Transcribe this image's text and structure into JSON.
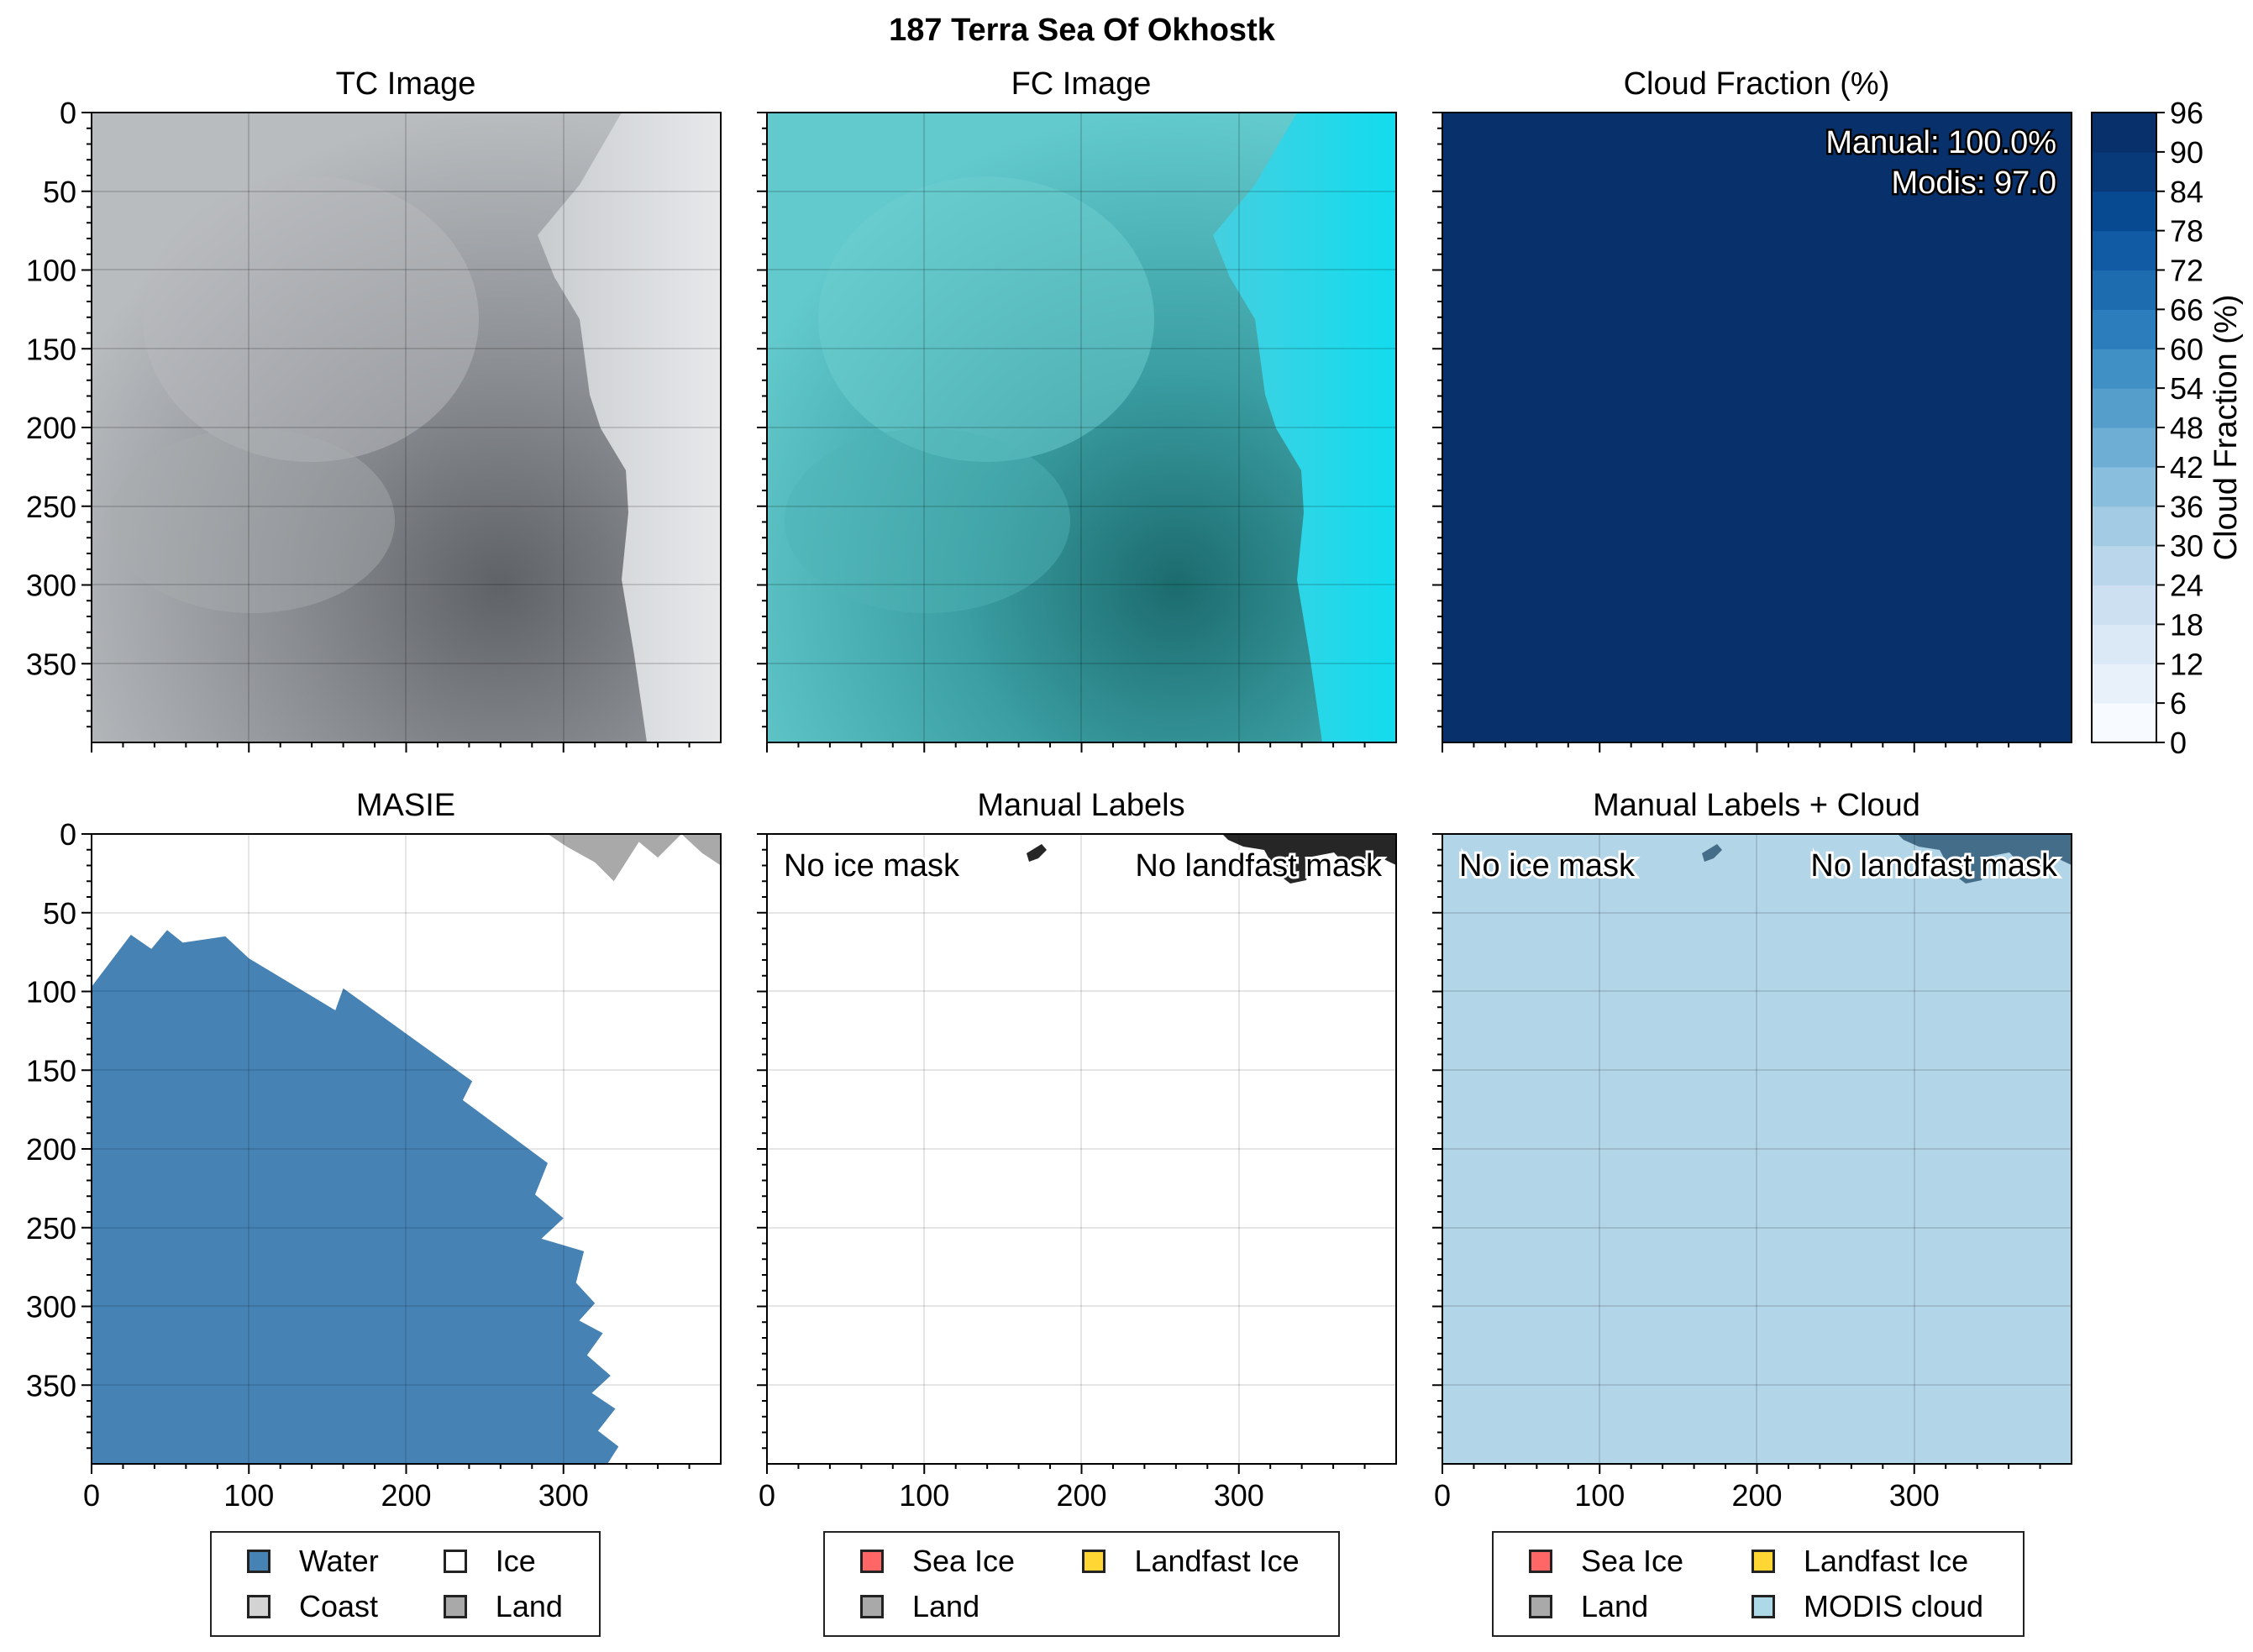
{
  "figure": {
    "suptitle": "187 Terra Sea Of Okhostk"
  },
  "panels": {
    "tc": {
      "title": "TC Image"
    },
    "fc": {
      "title": "FC Image"
    },
    "cloud": {
      "title": "Cloud Fraction (%)",
      "manual_text": "Manual: 100.0%",
      "modis_text": "Modis: 97.0"
    },
    "masie": {
      "title": "MASIE"
    },
    "manual": {
      "title": "Manual Labels",
      "no_ice_text": "No ice mask",
      "no_landfast_text": "No landfast mask"
    },
    "manual_cloud": {
      "title": "Manual Labels + Cloud",
      "no_ice_text": "No ice mask",
      "no_landfast_text": "No landfast mask"
    }
  },
  "colorbar": {
    "label": "Cloud Fraction (%)",
    "ticks": [
      "0",
      "6",
      "12",
      "18",
      "24",
      "30",
      "36",
      "42",
      "48",
      "54",
      "60",
      "66",
      "72",
      "78",
      "84",
      "90",
      "96"
    ],
    "colors": [
      "#f7fbff",
      "#e8f1fa",
      "#dbe9f6",
      "#cde0f1",
      "#bad6eb",
      "#a3cbe3",
      "#89bedc",
      "#6eaed5",
      "#559ecc",
      "#4090c5",
      "#2c7dbb",
      "#1d6cb0",
      "#105ba4",
      "#084a92",
      "#083a7a",
      "#08306b"
    ]
  },
  "legends": {
    "masie": [
      {
        "label": "Water",
        "color": "#4682b4"
      },
      {
        "label": "Ice",
        "color": "#ffffff"
      },
      {
        "label": "Coast",
        "color": "#d3d3d3"
      },
      {
        "label": "Land",
        "color": "#a9a9a9"
      }
    ],
    "manual": [
      {
        "label": "Sea Ice",
        "color": "#ff6666"
      },
      {
        "label": "Landfast Ice",
        "color": "#ffd633"
      },
      {
        "label": "Land",
        "color": "#a9a9a9"
      }
    ],
    "manual_cloud": [
      {
        "label": "Sea Ice",
        "color": "#ff6666"
      },
      {
        "label": "Landfast Ice",
        "color": "#ffd633"
      },
      {
        "label": "Land",
        "color": "#a9a9a9"
      },
      {
        "label": "MODIS cloud",
        "color": "#add8e6"
      }
    ]
  },
  "chart_data": [
    {
      "type": "heatmap",
      "title": "TC Image",
      "xlim": [
        0,
        400
      ],
      "ylim": [
        400,
        0
      ],
      "y_ticks": [
        "0",
        "50",
        "100",
        "150",
        "200",
        "250",
        "300",
        "350"
      ]
    },
    {
      "type": "heatmap",
      "title": "FC Image",
      "xlim": [
        0,
        400
      ],
      "ylim": [
        400,
        0
      ]
    },
    {
      "type": "heatmap",
      "title": "Cloud Fraction (%)",
      "xlim": [
        0,
        400
      ],
      "ylim": [
        400,
        0
      ],
      "cloud_fraction_value": 96
    },
    {
      "type": "heatmap",
      "title": "MASIE",
      "xlim": [
        0,
        400
      ],
      "ylim": [
        400,
        0
      ],
      "x_ticks": [
        "0",
        "100",
        "200",
        "300"
      ],
      "y_ticks": [
        "0",
        "50",
        "100",
        "150",
        "200",
        "250",
        "300",
        "350"
      ],
      "water_boundary": [
        [
          0,
          97
        ],
        [
          25,
          64
        ],
        [
          38,
          73
        ],
        [
          48,
          61
        ],
        [
          58,
          69
        ],
        [
          85,
          65
        ],
        [
          100,
          79
        ],
        [
          155,
          112
        ],
        [
          160,
          98
        ],
        [
          242,
          157
        ],
        [
          236,
          169
        ],
        [
          290,
          209
        ],
        [
          282,
          229
        ],
        [
          300,
          244
        ],
        [
          286,
          257
        ],
        [
          313,
          265
        ],
        [
          308,
          285
        ],
        [
          320,
          298
        ],
        [
          310,
          309
        ],
        [
          325,
          317
        ],
        [
          315,
          331
        ],
        [
          330,
          344
        ],
        [
          318,
          355
        ],
        [
          333,
          365
        ],
        [
          322,
          379
        ],
        [
          335,
          389
        ],
        [
          328,
          400
        ],
        [
          0,
          400
        ]
      ],
      "land_patch": [
        [
          290,
          0
        ],
        [
          400,
          0
        ],
        [
          400,
          20
        ],
        [
          388,
          12
        ],
        [
          375,
          0
        ],
        [
          360,
          15
        ],
        [
          348,
          5
        ],
        [
          332,
          30
        ],
        [
          320,
          18
        ],
        [
          302,
          8
        ]
      ]
    },
    {
      "type": "heatmap",
      "title": "Manual Labels",
      "xlim": [
        0,
        400
      ],
      "ylim": [
        400,
        0
      ],
      "x_ticks": [
        "0",
        "100",
        "200",
        "300"
      ]
    },
    {
      "type": "heatmap",
      "title": "Manual Labels + Cloud",
      "xlim": [
        0,
        400
      ],
      "ylim": [
        400,
        0
      ],
      "x_ticks": [
        "0",
        "100",
        "200",
        "300"
      ]
    }
  ]
}
